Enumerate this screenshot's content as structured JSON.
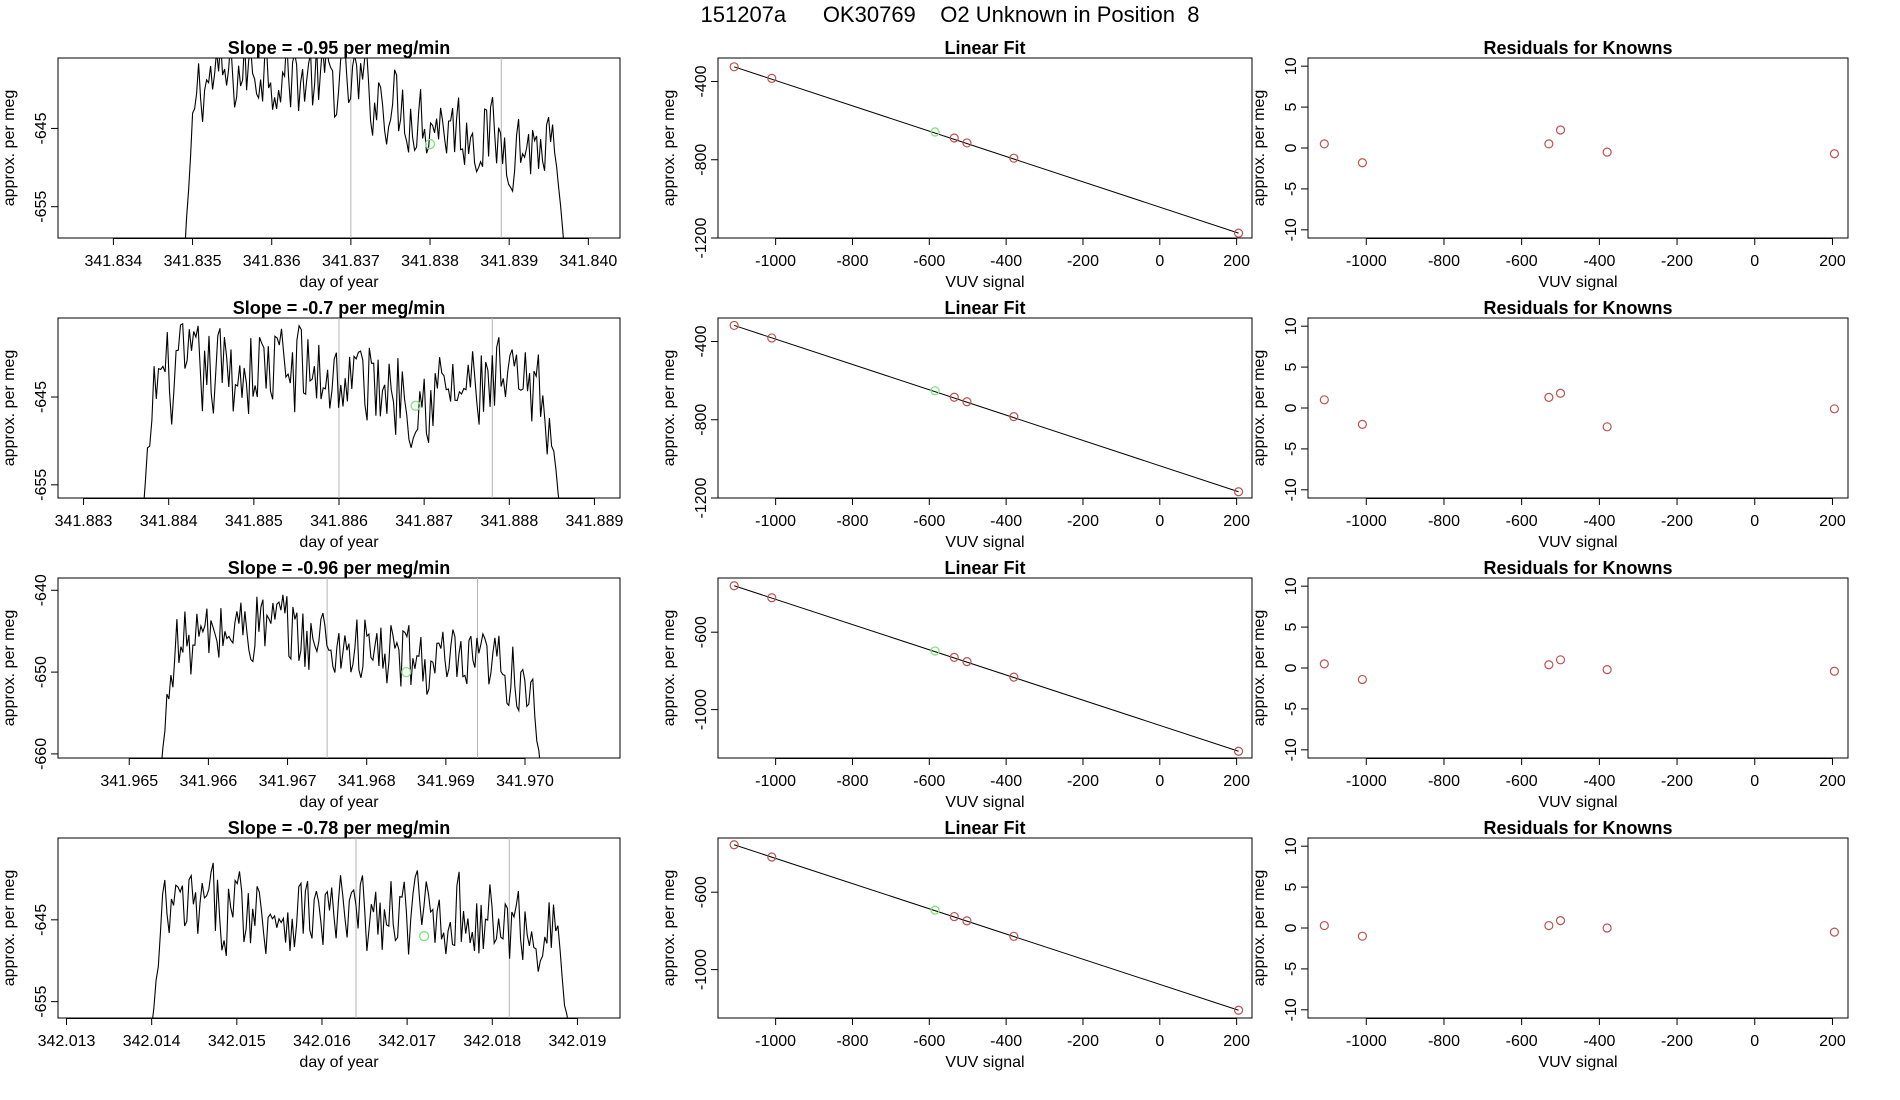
{
  "page": {
    "title": "151207a      OK30769    O2 Unknown in Position  8"
  },
  "chart_data": [
    {
      "type": "line",
      "panel": "time-series",
      "row": 0,
      "title": "Slope =  -0.95  per meg/min",
      "xlabel": "day of year",
      "ylabel": "approx. per meg",
      "xlim": [
        341.8333,
        341.8404
      ],
      "ylim": [
        -659,
        -636
      ],
      "xticks": [
        341.834,
        341.835,
        341.836,
        341.837,
        341.838,
        341.839,
        341.84
      ],
      "xtick_labels": [
        "341.834",
        "341.835",
        "341.836",
        "341.837",
        "341.838",
        "341.839",
        "341.840"
      ],
      "yticks": [
        -645,
        -655
      ],
      "vlines": [
        341.837,
        341.8389
      ],
      "x_start": 341.8349,
      "x_end": 341.8397,
      "base": -645.5,
      "amp": 2.2,
      "edges": [
        -661,
        -661
      ],
      "trend": [
        [
          0,
          6.0
        ],
        [
          0.12,
          7.0
        ],
        [
          0.2,
          8.5
        ],
        [
          0.3,
          7.0
        ],
        [
          0.45,
          6.0
        ],
        [
          0.6,
          2.5
        ],
        [
          0.75,
          0.2
        ],
        [
          0.85,
          -1.5
        ],
        [
          0.95,
          -2.0
        ],
        [
          1,
          -3.0
        ]
      ],
      "unknown_point": {
        "x": 341.838,
        "y": -647
      }
    },
    {
      "type": "line",
      "panel": "time-series",
      "row": 1,
      "title": "Slope =  -0.7  per meg/min",
      "xlabel": "day of year",
      "ylabel": "approx. per meg",
      "xlim": [
        341.8827,
        341.8893
      ],
      "ylim": [
        -656.5,
        -636
      ],
      "xticks": [
        341.883,
        341.884,
        341.885,
        341.886,
        341.887,
        341.888,
        341.889
      ],
      "xtick_labels": [
        "341.883",
        "341.884",
        "341.885",
        "341.886",
        "341.887",
        "341.888",
        "341.889"
      ],
      "yticks": [
        -645,
        -655
      ],
      "vlines": [
        341.886,
        341.8878
      ],
      "x_start": 341.8837,
      "x_end": 341.8886,
      "base": -643.5,
      "amp": 2.4,
      "edges": [
        -658,
        -658
      ],
      "trend": [
        [
          0,
          0.5
        ],
        [
          0.15,
          1.0
        ],
        [
          0.3,
          2.0
        ],
        [
          0.5,
          0.5
        ],
        [
          0.7,
          -1.0
        ],
        [
          0.85,
          -0.5
        ],
        [
          1,
          -3.0
        ]
      ],
      "unknown_point": {
        "x": 341.8869,
        "y": -646
      }
    },
    {
      "type": "line",
      "panel": "time-series",
      "row": 2,
      "title": "Slope =  -0.96  per meg/min",
      "xlabel": "day of year",
      "ylabel": "approx. per meg",
      "xlim": [
        341.9641,
        341.9712
      ],
      "ylim": [
        -660.5,
        -638.5
      ],
      "xticks": [
        341.965,
        341.966,
        341.967,
        341.968,
        341.969,
        341.97
      ],
      "xtick_labels": [
        "341.965",
        "341.966",
        "341.967",
        "341.968",
        "341.969",
        "341.970"
      ],
      "yticks": [
        -640,
        -650,
        -660
      ],
      "vlines": [
        341.9675,
        341.9694
      ],
      "x_start": 341.9654,
      "x_end": 341.9702,
      "base": -648,
      "amp": 2.0,
      "edges": [
        -662,
        -662
      ],
      "trend": [
        [
          0,
          0.5
        ],
        [
          0.15,
          2.5
        ],
        [
          0.25,
          4.0
        ],
        [
          0.4,
          2.0
        ],
        [
          0.6,
          0.0
        ],
        [
          0.8,
          -2.0
        ],
        [
          0.9,
          -1.5
        ],
        [
          1,
          -3.0
        ]
      ],
      "unknown_point": {
        "x": 341.9685,
        "y": -650
      }
    },
    {
      "type": "line",
      "panel": "time-series",
      "row": 3,
      "title": "Slope =  -0.78  per meg/min",
      "xlabel": "day of year",
      "ylabel": "approx. per meg",
      "xlim": [
        342.0129,
        342.0195
      ],
      "ylim": [
        -657,
        -635
      ],
      "xticks": [
        342.013,
        342.014,
        342.015,
        342.016,
        342.017,
        342.018,
        342.019
      ],
      "xtick_labels": [
        "342.013",
        "342.014",
        "342.015",
        "342.016",
        "342.017",
        "342.018",
        "342.019"
      ],
      "yticks": [
        -645,
        -655
      ],
      "vlines": [
        342.0164,
        342.0182
      ],
      "x_start": 342.014,
      "x_end": 342.0189,
      "base": -645,
      "amp": 2.2,
      "edges": [
        -658,
        -658
      ],
      "trend": [
        [
          0,
          0.5
        ],
        [
          0.2,
          1.5
        ],
        [
          0.35,
          1.0
        ],
        [
          0.55,
          0.0
        ],
        [
          0.7,
          1.0
        ],
        [
          0.85,
          -1.0
        ],
        [
          1,
          -1.5
        ]
      ],
      "unknown_point": {
        "x": 342.0172,
        "y": -647
      }
    },
    {
      "type": "scatter",
      "panel": "linear-fit",
      "row": 0,
      "title": "Linear Fit",
      "xlabel": "VUV signal",
      "ylabel": "approx. per meg",
      "xlim": [
        -1150,
        240
      ],
      "ylim": [
        -1200,
        -280
      ],
      "xticks": [
        -1000,
        -800,
        -600,
        -400,
        -200,
        0,
        200
      ],
      "xtick_labels": [
        "-1000",
        "-800",
        "-600",
        "-400",
        "-200",
        "0",
        "200"
      ],
      "yticks": [
        -400,
        -800,
        -1200
      ],
      "ytick_labels": [
        "-400",
        "-800",
        "-1200"
      ],
      "fit_line": {
        "x": [
          -1108,
          205
        ],
        "y": [
          -325,
          -1175
        ]
      },
      "knowns": {
        "x": [
          -1108,
          -1010,
          -535,
          -502,
          -380,
          205
        ],
        "y": [
          -325,
          -384,
          -689,
          -714,
          -792,
          -1175
        ]
      },
      "unknown": {
        "x": [
          -585
        ],
        "y": [
          -658
        ]
      }
    },
    {
      "type": "scatter",
      "panel": "linear-fit",
      "row": 1,
      "title": "Linear Fit",
      "xlabel": "VUV signal",
      "ylabel": "approx. per meg",
      "xlim": [
        -1150,
        240
      ],
      "ylim": [
        -1200,
        -280
      ],
      "xticks": [
        -1000,
        -800,
        -600,
        -400,
        -200,
        0,
        200
      ],
      "xtick_labels": [
        "-1000",
        "-800",
        "-600",
        "-400",
        "-200",
        "0",
        "200"
      ],
      "yticks": [
        -400,
        -800,
        -1200
      ],
      "ytick_labels": [
        "-400",
        "-800",
        "-1200"
      ],
      "fit_line": {
        "x": [
          -1108,
          205
        ],
        "y": [
          -318,
          -1168
        ]
      },
      "knowns": {
        "x": [
          -1108,
          -1010,
          -535,
          -502,
          -380,
          205
        ],
        "y": [
          -318,
          -382,
          -685,
          -708,
          -784,
          -1168
        ]
      },
      "unknown": {
        "x": [
          -585
        ],
        "y": [
          -652
        ]
      }
    },
    {
      "type": "scatter",
      "panel": "linear-fit",
      "row": 2,
      "title": "Linear Fit",
      "xlabel": "VUV signal",
      "ylabel": "approx. per meg",
      "xlim": [
        -1150,
        240
      ],
      "ylim": [
        -1250,
        -320
      ],
      "xticks": [
        -1000,
        -800,
        -600,
        -400,
        -200,
        0,
        200
      ],
      "xtick_labels": [
        "-1000",
        "-800",
        "-600",
        "-400",
        "-200",
        "0",
        "200"
      ],
      "yticks": [
        -600,
        -1000
      ],
      "ytick_labels": [
        "-600",
        "-1000"
      ],
      "fit_line": {
        "x": [
          -1108,
          205
        ],
        "y": [
          -360,
          -1215
        ]
      },
      "knowns": {
        "x": [
          -1108,
          -1010,
          -535,
          -502,
          -380,
          205
        ],
        "y": [
          -360,
          -422,
          -730,
          -752,
          -832,
          -1215
        ]
      },
      "unknown": {
        "x": [
          -585
        ],
        "y": [
          -697
        ]
      }
    },
    {
      "type": "scatter",
      "panel": "linear-fit",
      "row": 3,
      "title": "Linear Fit",
      "xlabel": "VUV signal",
      "ylabel": "approx. per meg",
      "xlim": [
        -1150,
        240
      ],
      "ylim": [
        -1250,
        -320
      ],
      "xticks": [
        -1000,
        -800,
        -600,
        -400,
        -200,
        0,
        200
      ],
      "xtick_labels": [
        "-1000",
        "-800",
        "-600",
        "-400",
        "-200",
        "0",
        "200"
      ],
      "yticks": [
        -600,
        -1000
      ],
      "ytick_labels": [
        "-600",
        "-1000"
      ],
      "fit_line": {
        "x": [
          -1108,
          205
        ],
        "y": [
          -355,
          -1210
        ]
      },
      "knowns": {
        "x": [
          -1108,
          -1010,
          -535,
          -502,
          -380,
          205
        ],
        "y": [
          -355,
          -418,
          -726,
          -748,
          -828,
          -1210
        ]
      },
      "unknown": {
        "x": [
          -585
        ],
        "y": [
          -693
        ]
      }
    },
    {
      "type": "scatter",
      "panel": "residuals",
      "row": 0,
      "title": "Residuals for Knowns",
      "xlabel": "VUV signal",
      "ylabel": "approx. per meg",
      "xlim": [
        -1150,
        240
      ],
      "ylim": [
        -11,
        11
      ],
      "xticks": [
        -1000,
        -800,
        -600,
        -400,
        -200,
        0,
        200
      ],
      "xtick_labels": [
        "-1000",
        "-800",
        "-600",
        "-400",
        "-200",
        "0",
        "200"
      ],
      "yticks": [
        10,
        5,
        0,
        -5,
        -10
      ],
      "ytick_labels": [
        "10",
        "5",
        "0",
        "-5",
        "-10"
      ],
      "x": [
        -1108,
        -1010,
        -530,
        -500,
        -380,
        205
      ],
      "y": [
        0.5,
        -1.8,
        0.5,
        2.2,
        -0.5,
        -0.7
      ]
    },
    {
      "type": "scatter",
      "panel": "residuals",
      "row": 1,
      "title": "Residuals for Knowns",
      "xlabel": "VUV signal",
      "ylabel": "approx. per meg",
      "xlim": [
        -1150,
        240
      ],
      "ylim": [
        -11,
        11
      ],
      "xticks": [
        -1000,
        -800,
        -600,
        -400,
        -200,
        0,
        200
      ],
      "xtick_labels": [
        "-1000",
        "-800",
        "-600",
        "-400",
        "-200",
        "0",
        "200"
      ],
      "yticks": [
        10,
        5,
        0,
        -5,
        -10
      ],
      "ytick_labels": [
        "10",
        "5",
        "0",
        "-5",
        "-10"
      ],
      "x": [
        -1108,
        -1010,
        -530,
        -500,
        -380,
        205
      ],
      "y": [
        1.0,
        -2.0,
        1.3,
        1.8,
        -2.3,
        -0.1
      ]
    },
    {
      "type": "scatter",
      "panel": "residuals",
      "row": 2,
      "title": "Residuals for Knowns",
      "xlabel": "VUV signal",
      "ylabel": "approx. per meg",
      "xlim": [
        -1150,
        240
      ],
      "ylim": [
        -11,
        11
      ],
      "xticks": [
        -1000,
        -800,
        -600,
        -400,
        -200,
        0,
        200
      ],
      "xtick_labels": [
        "-1000",
        "-800",
        "-600",
        "-400",
        "-200",
        "0",
        "200"
      ],
      "yticks": [
        10,
        5,
        0,
        -5,
        -10
      ],
      "ytick_labels": [
        "10",
        "5",
        "0",
        "-5",
        "-10"
      ],
      "x": [
        -1108,
        -1010,
        -530,
        -500,
        -380,
        205
      ],
      "y": [
        0.5,
        -1.4,
        0.4,
        1.0,
        -0.2,
        -0.4
      ]
    },
    {
      "type": "scatter",
      "panel": "residuals",
      "row": 3,
      "title": "Residuals for Knowns",
      "xlabel": "VUV signal",
      "ylabel": "approx. per meg",
      "xlim": [
        -1150,
        240
      ],
      "ylim": [
        -11,
        11
      ],
      "xticks": [
        -1000,
        -800,
        -600,
        -400,
        -200,
        0,
        200
      ],
      "xtick_labels": [
        "-1000",
        "-800",
        "-600",
        "-400",
        "-200",
        "0",
        "200"
      ],
      "yticks": [
        10,
        5,
        0,
        -5,
        -10
      ],
      "ytick_labels": [
        "10",
        "5",
        "0",
        "-5",
        "-10"
      ],
      "x": [
        -1108,
        -1010,
        -530,
        -500,
        -380,
        205
      ],
      "y": [
        0.3,
        -1.0,
        0.3,
        0.9,
        0.0,
        -0.5
      ]
    }
  ],
  "colors": {
    "axis": "#000000",
    "series": "#000000",
    "known_point": "#c0504d",
    "unknown_point": "#7fe57f",
    "vline": "#b5b5b5"
  }
}
